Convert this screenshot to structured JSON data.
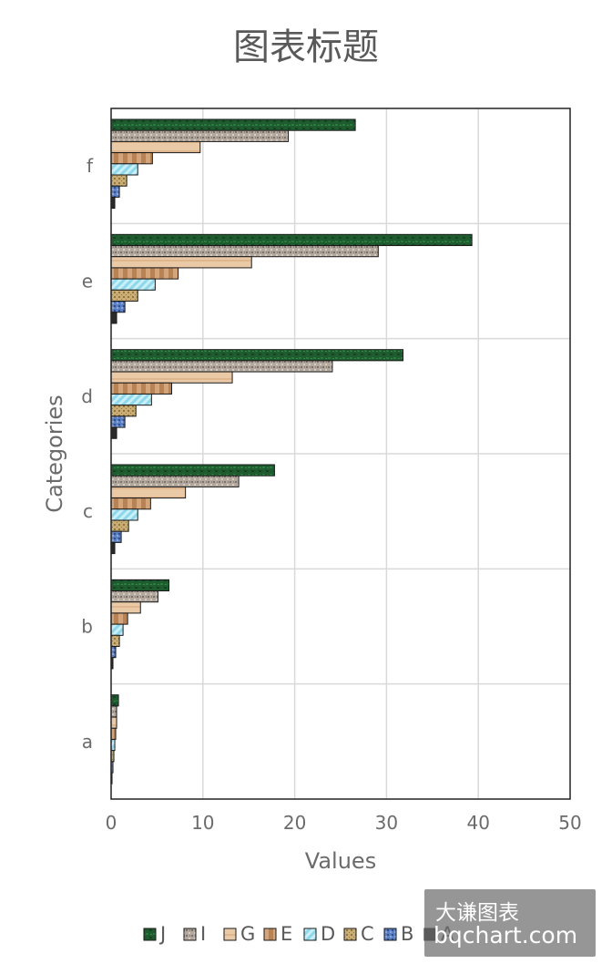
{
  "chart_data": {
    "type": "bar",
    "orientation": "horizontal",
    "title": "图表标题",
    "xlabel": "Values",
    "ylabel": "Categories",
    "categories": [
      "a",
      "b",
      "c",
      "d",
      "e",
      "f"
    ],
    "xlim": [
      0,
      50
    ],
    "xticks": [
      "0",
      "10",
      "20",
      "30",
      "40",
      "50"
    ],
    "grid": true,
    "legend_position": "bottom",
    "series": [
      {
        "name": "A",
        "color": "#1a1a1a",
        "values": [
          0.1,
          0.2,
          0.4,
          0.6,
          0.6,
          0.4
        ]
      },
      {
        "name": "B",
        "color": "#4a6fb3",
        "values": [
          0.2,
          0.5,
          1.1,
          1.5,
          1.5,
          0.9
        ]
      },
      {
        "name": "C",
        "color": "#b89a5e",
        "values": [
          0.3,
          0.9,
          1.9,
          2.7,
          2.9,
          1.7
        ]
      },
      {
        "name": "D",
        "color": "#a6e3f0",
        "values": [
          0.4,
          1.3,
          2.9,
          4.4,
          4.8,
          2.9
        ]
      },
      {
        "name": "E",
        "color": "#a8754a",
        "values": [
          0.5,
          1.8,
          4.3,
          6.6,
          7.3,
          4.5
        ]
      },
      {
        "name": "G",
        "color": "#e9c6a0",
        "values": [
          0.6,
          3.2,
          8.1,
          13.2,
          15.3,
          9.7
        ]
      },
      {
        "name": "I",
        "color": "#a69a90",
        "values": [
          0.6,
          5.1,
          13.9,
          24.1,
          29.1,
          19.3
        ]
      },
      {
        "name": "J",
        "color": "#1e5b2e",
        "values": [
          0.8,
          6.3,
          17.8,
          31.8,
          39.3,
          26.6
        ]
      }
    ],
    "legend_order": [
      "J",
      "I",
      "G",
      "E",
      "D",
      "C",
      "B",
      "A"
    ]
  },
  "watermark": {
    "line1": "大谦图表",
    "line2": "bqchart.com"
  }
}
